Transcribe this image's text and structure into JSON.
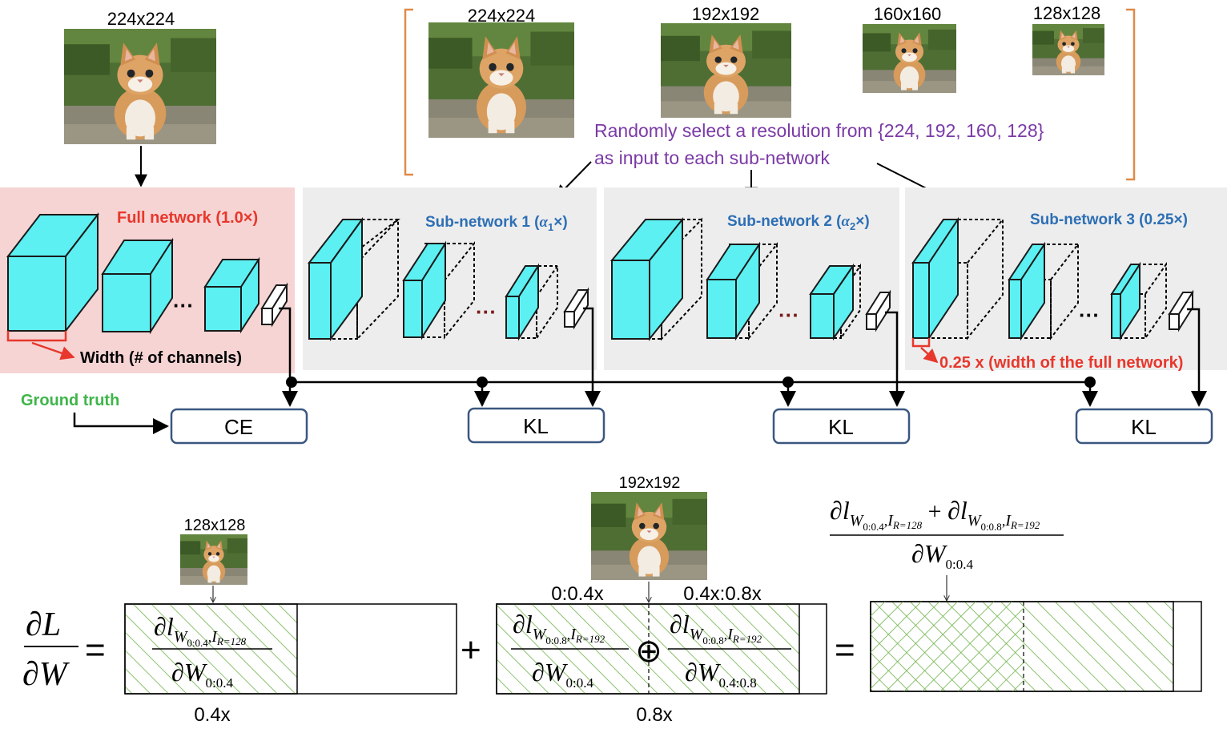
{
  "colors": {
    "full_panel_bg": "#f6d4d4",
    "sub_panel_bg": "#ededed",
    "cube_fill": "#5cf0f2",
    "red": "#e8372c",
    "blue": "#2d6fb5",
    "purple": "#7b3aa6",
    "green": "#3fb54a",
    "orange": "#e08a4a",
    "box_border": "#3a5780",
    "hatch": "#6fb24a"
  },
  "resolutions": {
    "full": "224x224",
    "r224": "224x224",
    "r192": "192x192",
    "r160": "160x160",
    "r128": "128x128"
  },
  "select_text": {
    "line1": "Randomly select a resolution from {224, 192, 160, 128}",
    "line2": "as input to each sub-network"
  },
  "networks": {
    "full_label": "Full network (1.0×)",
    "width_note": "Width (# of channels)",
    "sub1_prefix": "Sub-network 1 (",
    "sub1_alpha": "α",
    "sub1_sub": "1",
    "sub1_suffix": "×)",
    "sub2_prefix": "Sub-network 2 (",
    "sub2_alpha": "α",
    "sub2_sub": "2",
    "sub2_suffix": "×)",
    "sub3_label": "Sub-network 3 (0.25×)",
    "quarter_note": "0.25 x (width of the full network)",
    "ellipsis": "···"
  },
  "losses": {
    "ground_truth": "Ground truth",
    "ce": "CE",
    "kl1": "KL",
    "kl2": "KL",
    "kl3": "KL"
  },
  "equation": {
    "dL": "∂L",
    "dW": "∂W",
    "equals": "=",
    "plus": "+",
    "oplus": "⊕",
    "d": "∂",
    "l": "l",
    "W": "W",
    "I": "I",
    "comma": ",",
    "sub_w04": "0:0.4",
    "sub_w08": "0:0.8",
    "sub_w0408": "0.4:0.8",
    "sub_r128": "R=128",
    "sub_r192": "R=192",
    "label_04x": "0.4x",
    "label_08x": "0.8x",
    "label_0_04x": "0:0.4x",
    "label_04_08x": "0.4x:0.8x",
    "img128": "128x128",
    "img192": "192x192"
  }
}
